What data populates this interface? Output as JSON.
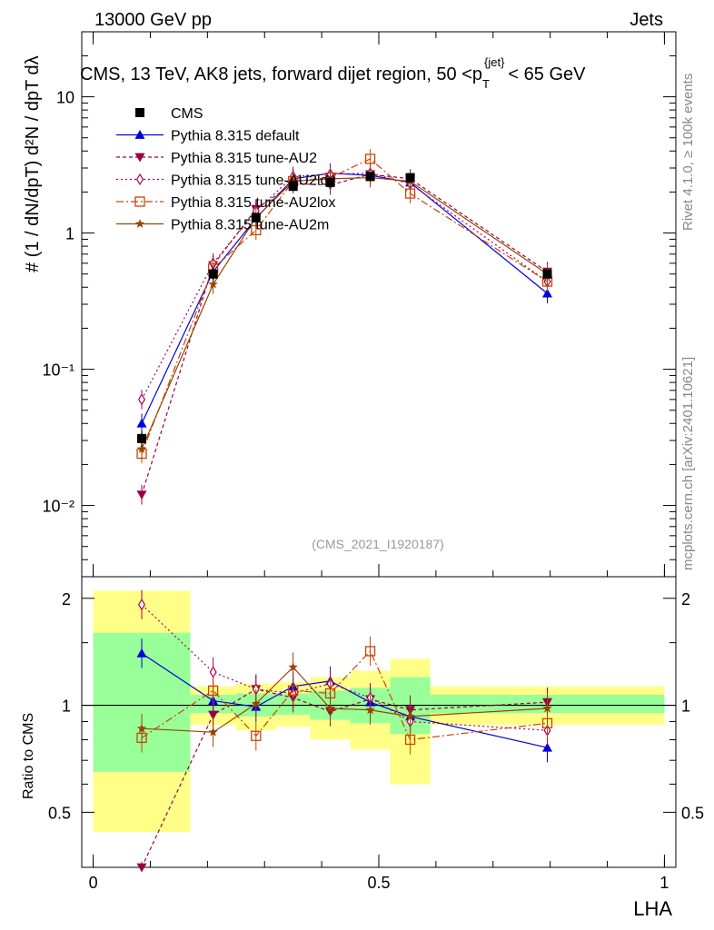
{
  "header": {
    "energy_label": "13000 GeV pp",
    "category_label": "Jets",
    "title_main": "CMS, 13 TeV, AK8 jets, forward dijet region, 50 <p",
    "title_sub": "T",
    "title_sup": "{jet}",
    "title_end": "< 65 GeV",
    "side_text_top": "Rivet 4.1.0, ≥ 100k events",
    "side_text_bottom": "mcplots.cern.ch [arXiv:2401.10621]",
    "analysis_id": "(CMS_2021_I1920187)"
  },
  "colors": {
    "cms": "#000000",
    "default": "#0000dd",
    "au2": "#990044",
    "au2lox": "#aa0055",
    "au2lox2": "#cc4400",
    "au2m": "#994400",
    "band_outer": "#ffff88",
    "band_inner": "#99ff99"
  },
  "chart_data": {
    "type": "line",
    "xlabel": "LHA",
    "ylabel_main": "# (1 / dN/dpT) d²N / dpT dλ",
    "ylabel_ratio": "Ratio to CMS",
    "xlim": [
      -0.02,
      1.02
    ],
    "ylim_main": [
      0.003,
      30
    ],
    "ylim_ratio": [
      0.35,
      2.3
    ],
    "x_ticks": [
      "0",
      "0.5",
      "1"
    ],
    "y_ticks_main": [
      "10⁻²",
      "10⁻¹",
      "1",
      "10"
    ],
    "y_ticks_ratio": [
      "0.5",
      "1",
      "2"
    ],
    "bins": [
      0,
      0.17,
      0.25,
      0.32,
      0.38,
      0.45,
      0.52,
      0.59,
      1.0
    ],
    "x": [
      0.085,
      0.21,
      0.285,
      0.35,
      0.415,
      0.485,
      0.555,
      0.795
    ],
    "cms": [
      0.031,
      0.5,
      1.3,
      2.2,
      2.35,
      2.6,
      2.55,
      0.5
    ],
    "cms_err": [
      0.004,
      0.05,
      0.1,
      0.15,
      0.15,
      0.2,
      0.2,
      0.03
    ],
    "series": [
      {
        "name": "Pythia 8.315 default",
        "key": "default",
        "marker": "triangle-up",
        "dash": "",
        "values": [
          0.04,
          0.52,
          1.28,
          2.5,
          2.75,
          2.65,
          2.35,
          0.36
        ],
        "ratio": [
          1.4,
          1.03,
          0.99,
          1.13,
          1.17,
          1.02,
          0.93,
          0.76
        ]
      },
      {
        "name": "Pythia 8.315 tune-AU2",
        "key": "au2",
        "marker": "triangle-down",
        "dash": "4,3",
        "values": [
          0.012,
          0.58,
          1.5,
          2.3,
          2.25,
          2.7,
          2.5,
          0.52
        ],
        "ratio": [
          0.33,
          0.94,
          1.11,
          1.05,
          0.96,
          1.04,
          0.97,
          1.02
        ]
      },
      {
        "name": "Pythia 8.315 tune-AU2lox",
        "key": "au2lox",
        "marker": "diamond",
        "dash": "2,3",
        "values": [
          0.06,
          0.6,
          1.45,
          2.6,
          2.7,
          2.75,
          2.3,
          0.44
        ],
        "ratio": [
          1.92,
          1.24,
          1.11,
          1.08,
          1.15,
          1.05,
          0.9,
          0.85
        ]
      },
      {
        "name": "Pythia 8.315 tune-AU2lox",
        "key": "au2lox2",
        "marker": "square-open",
        "dash": "8,3,2,3",
        "values": [
          0.024,
          0.55,
          1.05,
          2.4,
          2.55,
          3.5,
          1.95,
          0.44
        ],
        "ratio": [
          0.81,
          1.1,
          0.82,
          1.1,
          1.08,
          1.42,
          0.8,
          0.89
        ]
      },
      {
        "name": "Pythia 8.315 tune-AU2m",
        "key": "au2m",
        "marker": "star",
        "dash": "",
        "values": [
          0.026,
          0.42,
          1.3,
          2.4,
          2.5,
          2.55,
          2.4,
          0.5
        ],
        "ratio": [
          0.86,
          0.84,
          1.01,
          1.28,
          0.98,
          0.97,
          0.93,
          0.98
        ]
      }
    ],
    "band_outer": [
      [
        0.44,
        2.1
      ],
      [
        0.88,
        1.13
      ],
      [
        0.85,
        1.15
      ],
      [
        0.87,
        1.16
      ],
      [
        0.8,
        1.2
      ],
      [
        0.75,
        1.25
      ],
      [
        0.6,
        1.35
      ],
      [
        0.88,
        1.13
      ]
    ],
    "band_inner": [
      [
        0.65,
        1.6
      ],
      [
        0.95,
        1.07
      ],
      [
        0.93,
        1.08
      ],
      [
        0.94,
        1.08
      ],
      [
        0.91,
        1.1
      ],
      [
        0.89,
        1.12
      ],
      [
        0.83,
        1.2
      ],
      [
        0.95,
        1.07
      ]
    ]
  }
}
